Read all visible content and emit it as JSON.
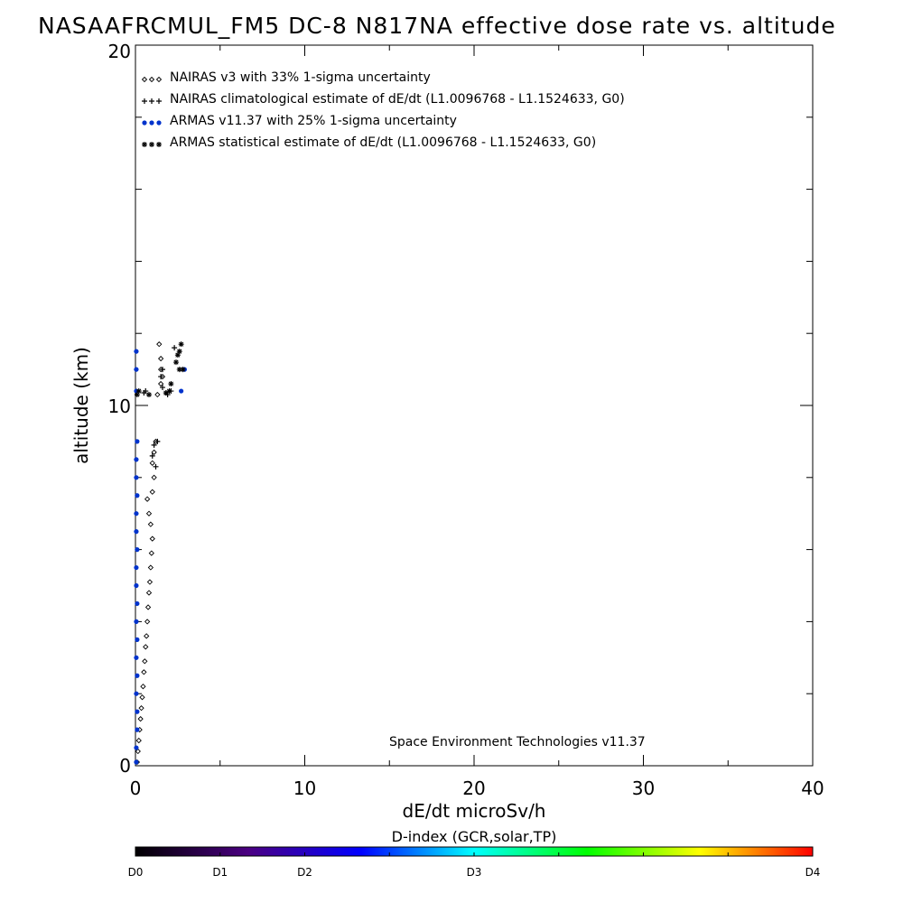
{
  "chart_data": {
    "type": "scatter",
    "title": "NASAAFRCMUL_FM5 DC-8   N817NA effective dose rate vs. altitude",
    "xlabel": "dE/dt microSv/h",
    "ylabel": "altitude (km)",
    "xlim": [
      0,
      40
    ],
    "ylim": [
      0,
      20
    ],
    "x_ticks": [
      "0",
      "10",
      "20",
      "30",
      "40"
    ],
    "y_ticks": [
      "0",
      "10",
      "20"
    ],
    "grid": false,
    "legend_position": "top-left",
    "credit": "Space Environment Technologies v11.37",
    "series": [
      {
        "name": "NAIRAS v3 with 33% 1-sigma uncertainty",
        "marker": "diamond",
        "color": "#000000",
        "points": [
          [
            0.1,
            0.1
          ],
          [
            0.15,
            0.4
          ],
          [
            0.2,
            0.7
          ],
          [
            0.25,
            1.0
          ],
          [
            0.3,
            1.3
          ],
          [
            0.35,
            1.6
          ],
          [
            0.4,
            1.9
          ],
          [
            0.45,
            2.2
          ],
          [
            0.5,
            2.6
          ],
          [
            0.55,
            2.9
          ],
          [
            0.6,
            3.3
          ],
          [
            0.65,
            3.6
          ],
          [
            0.7,
            4.0
          ],
          [
            0.75,
            4.4
          ],
          [
            0.8,
            4.8
          ],
          [
            0.85,
            5.1
          ],
          [
            0.9,
            5.5
          ],
          [
            0.95,
            5.9
          ],
          [
            1.0,
            6.3
          ],
          [
            0.9,
            6.7
          ],
          [
            0.8,
            7.0
          ],
          [
            0.7,
            7.4
          ],
          [
            1.0,
            7.6
          ],
          [
            1.1,
            8.0
          ],
          [
            1.0,
            8.4
          ],
          [
            1.1,
            8.7
          ],
          [
            1.2,
            9.0
          ],
          [
            1.3,
            10.3
          ],
          [
            1.5,
            10.6
          ],
          [
            1.6,
            10.8
          ],
          [
            1.5,
            11.0
          ],
          [
            1.5,
            11.3
          ],
          [
            1.4,
            11.7
          ]
        ]
      },
      {
        "name": "NAIRAS climatological estimate of dE/dt (L1.0096768 - L1.1524633, G0)",
        "marker": "plus",
        "color": "#000000",
        "points": [
          [
            0.5,
            10.35
          ],
          [
            0.6,
            10.4
          ],
          [
            1.2,
            8.3
          ],
          [
            1.0,
            8.6
          ],
          [
            1.1,
            8.9
          ],
          [
            1.3,
            9.0
          ],
          [
            1.6,
            10.5
          ],
          [
            1.5,
            10.8
          ],
          [
            1.6,
            11.0
          ],
          [
            1.9,
            10.3
          ],
          [
            2.1,
            10.4
          ],
          [
            2.3,
            11.6
          ]
        ]
      },
      {
        "name": "ARMAS v11.37 with 25% 1-sigma uncertainty",
        "marker": "dot",
        "color": "#0033cc",
        "points": [
          [
            0.05,
            0.1
          ],
          [
            0.05,
            0.5
          ],
          [
            0.1,
            1.0
          ],
          [
            0.1,
            1.5
          ],
          [
            0.05,
            2.0
          ],
          [
            0.1,
            2.5
          ],
          [
            0.05,
            3.0
          ],
          [
            0.1,
            3.5
          ],
          [
            0.05,
            4.0
          ],
          [
            0.1,
            4.5
          ],
          [
            0.05,
            5.0
          ],
          [
            0.05,
            5.5
          ],
          [
            0.1,
            6.0
          ],
          [
            0.05,
            6.5
          ],
          [
            0.05,
            7.0
          ],
          [
            0.1,
            7.5
          ],
          [
            0.05,
            8.0
          ],
          [
            0.05,
            8.5
          ],
          [
            0.1,
            9.0
          ],
          [
            0.05,
            10.4
          ],
          [
            0.05,
            11.0
          ],
          [
            0.05,
            11.5
          ],
          [
            2.7,
            10.4
          ],
          [
            2.9,
            11.0
          ]
        ]
      },
      {
        "name": "ARMAS statistical estimate of dE/dt (L1.0096768 - L1.1524633, G0)",
        "marker": "asterisk",
        "color": "#000000",
        "points": [
          [
            0.1,
            10.3
          ],
          [
            0.2,
            10.4
          ],
          [
            0.8,
            10.3
          ],
          [
            1.8,
            10.35
          ],
          [
            2.0,
            10.4
          ],
          [
            2.1,
            10.6
          ],
          [
            2.4,
            11.2
          ],
          [
            2.5,
            11.4
          ],
          [
            2.6,
            11.5
          ],
          [
            2.7,
            11.7
          ],
          [
            2.6,
            11.0
          ],
          [
            2.8,
            11.0
          ]
        ]
      }
    ],
    "colorbar": {
      "label": "D-index (GCR,solar,TP)",
      "ticks": [
        "D0",
        "D1",
        "D2",
        "D3",
        "D4"
      ],
      "tick_positions": [
        0,
        0.125,
        0.25,
        0.5,
        1.0
      ],
      "colors": [
        "#000000",
        "#4b0082",
        "#0000ff",
        "#00ffff",
        "#00ff00",
        "#ffff00",
        "#ff0000"
      ]
    }
  }
}
